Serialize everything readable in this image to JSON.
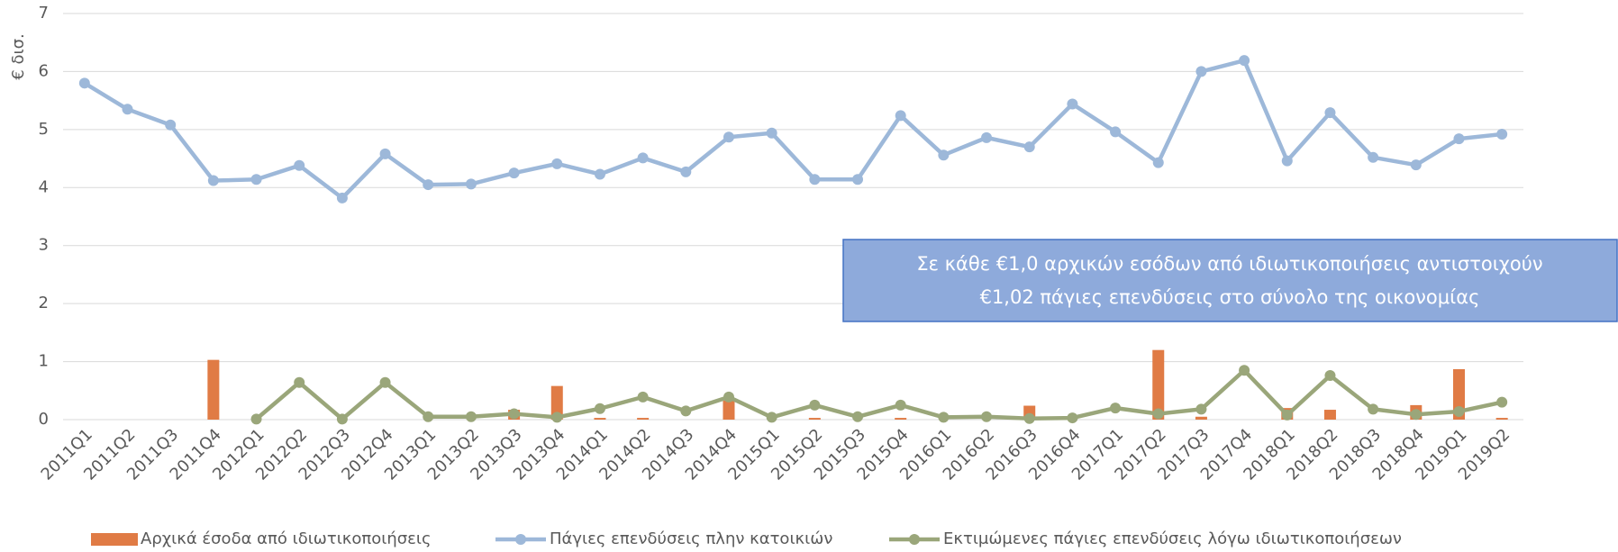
{
  "chart_data": {
    "type": "bar_line",
    "y_label": "€ δισ.",
    "categories": [
      "2011Q1",
      "2011Q2",
      "2011Q3",
      "2011Q4",
      "2012Q1",
      "2012Q2",
      "2012Q3",
      "2012Q4",
      "2013Q1",
      "2013Q2",
      "2013Q3",
      "2013Q4",
      "2014Q1",
      "2014Q2",
      "2014Q3",
      "2014Q4",
      "2015Q1",
      "2015Q2",
      "2015Q3",
      "2015Q4",
      "2016Q1",
      "2016Q2",
      "2016Q3",
      "2016Q4",
      "2017Q1",
      "2017Q2",
      "2017Q3",
      "2017Q4",
      "2018Q1",
      "2018Q2",
      "2018Q3",
      "2018Q4",
      "2019Q1",
      "2019Q2"
    ],
    "series": [
      {
        "name": "Αρχικά έσοδα από ιδιωτικοποιήσεις",
        "kind": "bar",
        "color": "#e07b45",
        "values": [
          0,
          0,
          0,
          1.03,
          0,
          0,
          0,
          0,
          0,
          0,
          0.17,
          0.58,
          0.03,
          0.03,
          0,
          0.33,
          0,
          0.03,
          0,
          0.03,
          0,
          0,
          0.24,
          0,
          0,
          1.2,
          0.05,
          0,
          0.2,
          0.17,
          0,
          0.25,
          0.87,
          0.03
        ]
      },
      {
        "name": "Πάγιες επενδύσεις πλην κατοικιών",
        "kind": "line",
        "color": "#9db8d9",
        "values": [
          5.8,
          5.35,
          5.08,
          4.12,
          4.14,
          4.38,
          3.82,
          4.58,
          4.05,
          4.06,
          4.25,
          4.41,
          4.23,
          4.51,
          4.27,
          4.87,
          4.94,
          4.14,
          4.14,
          5.24,
          4.56,
          4.86,
          4.7,
          5.44,
          4.96,
          4.43,
          6.0,
          6.19,
          4.46,
          5.29,
          4.52,
          4.39,
          4.84,
          4.92
        ]
      },
      {
        "name": "Εκτιμώμενες πάγιες επενδύσεις λόγω ιδιωτικοποιήσεων",
        "kind": "line",
        "color": "#9aa67a",
        "values": [
          null,
          null,
          null,
          null,
          0.01,
          0.64,
          0.01,
          0.64,
          0.05,
          0.05,
          0.1,
          0.04,
          0.19,
          0.39,
          0.15,
          0.39,
          0.04,
          0.25,
          0.05,
          0.25,
          0.04,
          0.05,
          0.02,
          0.03,
          0.2,
          0.1,
          0.18,
          0.85,
          0.08,
          0.76,
          0.18,
          0.09,
          0.14,
          0.3
        ]
      }
    ],
    "ylim": [
      0,
      7
    ],
    "yticks": [
      0,
      1,
      2,
      3,
      4,
      5,
      6,
      7
    ],
    "grid": true,
    "annotation": [
      "Σε κάθε €1,0 αρχικών εσόδων από ιδιωτικοποιήσεις αντιστοιχούν",
      "€1,02 πάγιες επενδύσεις στο σύνολο της οικονομίας"
    ]
  }
}
